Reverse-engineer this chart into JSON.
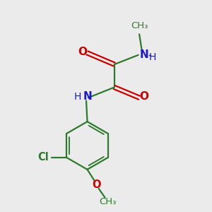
{
  "bg_color": "#ebebeb",
  "bond_color": "#2d7a2d",
  "O_color": "#cc0000",
  "N_color": "#1a1acc",
  "Cl_color": "#2d7a2d",
  "line_width": 1.6,
  "font_size": 10.5,
  "fig_bg": "#ebebeb",
  "xlim": [
    0,
    10
  ],
  "ylim": [
    0,
    10
  ]
}
